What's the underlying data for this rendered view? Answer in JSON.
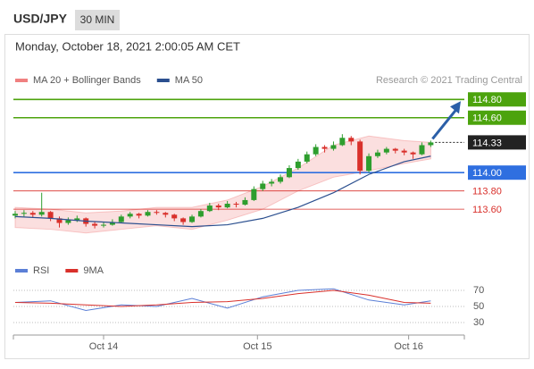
{
  "header": {
    "symbol": "USD/JPY",
    "timeframe": "30 MIN",
    "datetime": "Monday, October 18, 2021 2:00:05 AM CET"
  },
  "chart_data": [
    {
      "type": "candlestick",
      "source": "Research © 2021 Trading Central",
      "up_color": "#2e9e2e",
      "down_color": "#d9302b",
      "ohlc": [
        [
          113.53,
          113.58,
          113.5,
          113.55
        ],
        [
          113.55,
          113.59,
          113.52,
          113.56
        ],
        [
          113.56,
          113.58,
          113.51,
          113.54
        ],
        [
          113.54,
          113.78,
          113.52,
          113.57
        ],
        [
          113.57,
          113.58,
          113.47,
          113.5
        ],
        [
          113.5,
          113.52,
          113.4,
          113.45
        ],
        [
          113.45,
          113.51,
          113.43,
          113.48
        ],
        [
          113.48,
          113.53,
          113.46,
          113.5
        ],
        [
          113.5,
          113.51,
          113.41,
          113.44
        ],
        [
          113.44,
          113.46,
          113.39,
          113.42
        ],
        [
          113.42,
          113.46,
          113.4,
          113.43
        ],
        [
          113.43,
          113.49,
          113.42,
          113.46
        ],
        [
          113.46,
          113.54,
          113.45,
          113.52
        ],
        [
          113.52,
          113.57,
          113.5,
          113.55
        ],
        [
          113.55,
          113.56,
          113.5,
          113.53
        ],
        [
          113.53,
          113.59,
          113.52,
          113.57
        ],
        [
          113.57,
          113.59,
          113.54,
          113.56
        ],
        [
          113.56,
          113.57,
          113.51,
          113.54
        ],
        [
          113.54,
          113.55,
          113.47,
          113.5
        ],
        [
          113.5,
          113.51,
          113.43,
          113.46
        ],
        [
          113.46,
          113.54,
          113.45,
          113.52
        ],
        [
          113.52,
          113.6,
          113.51,
          113.58
        ],
        [
          113.58,
          113.67,
          113.57,
          113.64
        ],
        [
          113.64,
          113.66,
          113.59,
          113.62
        ],
        [
          113.62,
          113.69,
          113.61,
          113.66
        ],
        [
          113.66,
          113.68,
          113.62,
          113.65
        ],
        [
          113.65,
          113.73,
          113.64,
          113.7
        ],
        [
          113.7,
          113.85,
          113.69,
          113.82
        ],
        [
          113.82,
          113.91,
          113.8,
          113.88
        ],
        [
          113.88,
          113.93,
          113.85,
          113.9
        ],
        [
          113.9,
          113.98,
          113.88,
          113.95
        ],
        [
          113.95,
          114.08,
          113.94,
          114.05
        ],
        [
          114.05,
          114.15,
          114.03,
          114.12
        ],
        [
          114.12,
          114.23,
          114.1,
          114.2
        ],
        [
          114.2,
          114.31,
          114.18,
          114.28
        ],
        [
          114.28,
          114.3,
          114.22,
          114.26
        ],
        [
          114.26,
          114.34,
          114.24,
          114.3
        ],
        [
          114.3,
          114.42,
          114.29,
          114.38
        ],
        [
          114.38,
          114.4,
          114.3,
          114.34
        ],
        [
          114.34,
          114.36,
          113.98,
          114.02
        ],
        [
          114.02,
          114.21,
          114.0,
          114.18
        ],
        [
          114.18,
          114.25,
          114.16,
          114.22
        ],
        [
          114.22,
          114.28,
          114.2,
          114.26
        ],
        [
          114.26,
          114.27,
          114.21,
          114.24
        ],
        [
          114.24,
          114.26,
          114.19,
          114.22
        ],
        [
          114.22,
          114.23,
          114.15,
          114.2
        ],
        [
          114.2,
          114.33,
          114.19,
          114.3
        ],
        [
          114.3,
          114.35,
          114.28,
          114.33
        ]
      ],
      "series": [
        {
          "name": "MA 20 + Bollinger Bands",
          "color": "#f08080",
          "x": [
            0,
            4,
            8,
            12,
            16,
            20,
            24,
            28,
            32,
            36,
            40,
            44,
            47
          ],
          "upper": [
            113.62,
            113.6,
            113.56,
            113.58,
            113.62,
            113.62,
            113.7,
            113.85,
            114.05,
            114.3,
            114.4,
            114.35,
            114.33
          ],
          "lower": [
            113.4,
            113.38,
            113.34,
            113.38,
            113.42,
            113.38,
            113.48,
            113.6,
            113.8,
            113.95,
            114.02,
            114.1,
            114.15
          ]
        },
        {
          "name": "MA 50",
          "color": "#2b4f8f",
          "x": [
            0,
            4,
            8,
            12,
            16,
            20,
            24,
            28,
            32,
            36,
            40,
            44,
            47
          ],
          "values": [
            113.52,
            113.5,
            113.47,
            113.45,
            113.43,
            113.41,
            113.43,
            113.5,
            113.62,
            113.78,
            113.98,
            114.12,
            114.18
          ]
        }
      ],
      "levels": [
        {
          "value": 114.8,
          "label": "114.80",
          "color": "#4ca30d",
          "boxed": true
        },
        {
          "value": 114.6,
          "label": "114.60",
          "color": "#4ca30d",
          "boxed": true
        },
        {
          "value": 114.33,
          "label": "114.33",
          "color": "#222222",
          "boxed": true
        },
        {
          "value": 114,
          "label": "114.00",
          "color": "#2f6fe0",
          "boxed": true
        },
        {
          "value": 113.8,
          "label": "113.80",
          "color": "#d9302b",
          "boxed": false
        },
        {
          "value": 113.6,
          "label": "113.60",
          "color": "#d9302b",
          "boxed": false
        }
      ],
      "xlim": [
        -0.2,
        50.8
      ],
      "ylim": [
        113.25,
        114.91
      ],
      "xticks": [
        {
          "value": 10,
          "label": "Oct 14"
        },
        {
          "value": 27.4,
          "label": "Oct 15"
        },
        {
          "value": 44.5,
          "label": "Oct 16"
        }
      ]
    },
    {
      "type": "line",
      "series": [
        {
          "name": "RSI",
          "color": "#5b7fd6",
          "x": [
            0,
            4,
            8,
            12,
            16,
            20,
            24,
            28,
            32,
            36,
            40,
            44,
            47
          ],
          "values": [
            55,
            57,
            45,
            52,
            50,
            60,
            48,
            62,
            70,
            72,
            58,
            52,
            57
          ]
        },
        {
          "name": "9MA",
          "color": "#d9302b",
          "x": [
            0,
            4,
            8,
            12,
            16,
            20,
            24,
            28,
            32,
            36,
            40,
            44,
            47
          ],
          "values": [
            55,
            54,
            52,
            50,
            52,
            55,
            56,
            60,
            66,
            70,
            64,
            55,
            54
          ]
        }
      ],
      "xlim": [
        -0.2,
        50.8
      ],
      "ylim": [
        20,
        80
      ],
      "yticks": [
        70,
        50,
        30
      ]
    }
  ]
}
